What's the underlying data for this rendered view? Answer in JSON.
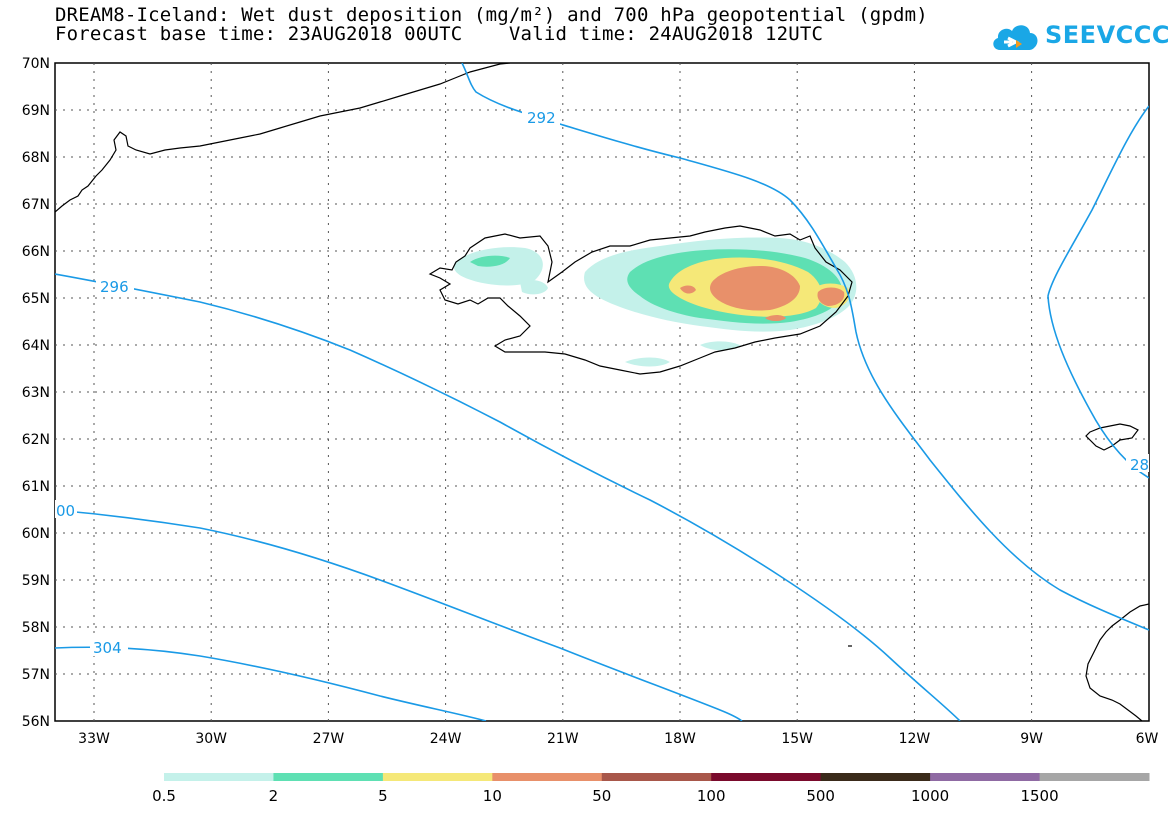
{
  "header": {
    "title_line1": "DREAM8-Iceland: Wet dust deposition (mg/m²) and 700 hPa geopotential (gpdm)",
    "title_line2": "Forecast base time: 23AUG2018 00UTC    Valid time: 24AUG2018 12UTC"
  },
  "logo": {
    "text": "SEEVCCC",
    "icon": "cloud-icon",
    "color": "#1aa7e6"
  },
  "map": {
    "lat_labels": [
      "70N",
      "69N",
      "68N",
      "67N",
      "66N",
      "65N",
      "64N",
      "63N",
      "62N",
      "61N",
      "60N",
      "59N",
      "58N",
      "57N",
      "56N"
    ],
    "lon_labels": [
      "33W",
      "30W",
      "27W",
      "24W",
      "21W",
      "18W",
      "15W",
      "12W",
      "9W",
      "6W"
    ],
    "contour_labels": [
      "292",
      "296",
      "00",
      "304",
      "28"
    ],
    "contour_color": "#1a9ae6"
  },
  "legend": {
    "labels": [
      "0.5",
      "2",
      "5",
      "10",
      "50",
      "100",
      "500",
      "1000",
      "1500"
    ],
    "colors": [
      "#c4f1ea",
      "#5ee0b3",
      "#f5e878",
      "#e8906a",
      "#a8574a",
      "#7a0a2c",
      "#3a2a1a",
      "#8f6aa3",
      "#a6a6a6"
    ]
  }
}
